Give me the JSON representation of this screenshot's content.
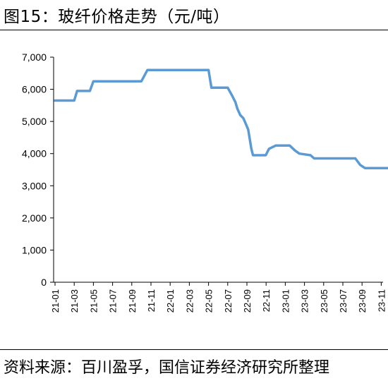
{
  "figure": {
    "title": "图15：玻纤价格走势（元/吨）",
    "source": "资料来源：百川盈孚，国信证券经济研究所整理"
  },
  "chart_data": {
    "type": "line",
    "title": "玻纤价格走势（元/吨）",
    "xlabel": "",
    "ylabel": "",
    "ylim": [
      0,
      7000
    ],
    "yticks": [
      0,
      1000,
      2000,
      3000,
      4000,
      5000,
      6000,
      7000
    ],
    "ytick_labels": [
      "0",
      "1,000",
      "2,000",
      "3,000",
      "4,000",
      "5,000",
      "6,000",
      "7,000"
    ],
    "xticks": [
      "21-01",
      "21-03",
      "21-05",
      "21-07",
      "21-09",
      "21-11",
      "22-01",
      "22-03",
      "22-05",
      "22-07",
      "22-09",
      "22-11",
      "23-01",
      "23-03",
      "23-05",
      "23-07",
      "23-09",
      "23-11"
    ],
    "grid": false,
    "legend": "none",
    "line_color": "#5b9bd5",
    "series": [
      {
        "x": [
          "2021-01-01",
          "2021-03-01",
          "2021-03-10",
          "2021-04-20",
          "2021-05-01",
          "2021-10-01",
          "2021-10-20",
          "2022-05-01",
          "2022-05-10",
          "2022-07-01",
          "2022-07-15",
          "2022-07-25",
          "2022-08-01",
          "2022-08-10",
          "2022-08-20",
          "2022-09-05",
          "2022-09-15",
          "2022-09-20",
          "2022-10-30",
          "2022-11-10",
          "2022-12-01",
          "2023-01-15",
          "2023-02-01",
          "2023-02-15",
          "2023-03-20",
          "2023-04-01",
          "2023-08-10",
          "2023-08-25",
          "2023-09-10",
          "2023-12-20"
        ],
        "values": [
          5650,
          5650,
          5950,
          5950,
          6250,
          6250,
          6600,
          6600,
          6050,
          6050,
          5800,
          5600,
          5400,
          5200,
          5100,
          4750,
          4150,
          3950,
          3950,
          4150,
          4250,
          4250,
          4100,
          4000,
          3950,
          3850,
          3850,
          3650,
          3550,
          3550
        ]
      }
    ]
  }
}
